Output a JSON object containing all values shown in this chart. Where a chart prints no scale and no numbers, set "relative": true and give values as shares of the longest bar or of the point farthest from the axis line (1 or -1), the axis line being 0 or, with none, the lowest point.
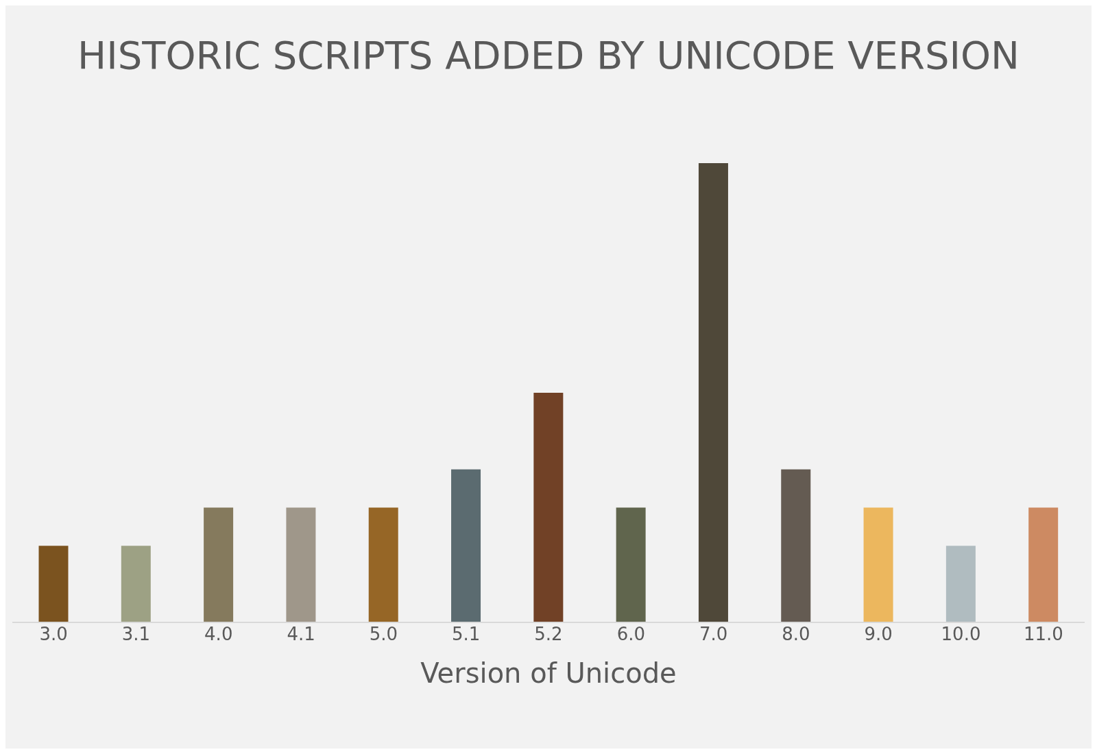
{
  "chart_data": {
    "type": "bar",
    "title": "HISTORIC SCRIPTS ADDED BY UNICODE VERSION",
    "xlabel": "Version of Unicode",
    "relative": true,
    "categories": [
      "3.0",
      "3.1",
      "4.0",
      "4.1",
      "5.0",
      "5.1",
      "5.2",
      "6.0",
      "7.0",
      "8.0",
      "9.0",
      "10.0",
      "11.0"
    ],
    "values": [
      0.1667,
      0.1667,
      0.25,
      0.25,
      0.25,
      0.3333,
      0.5,
      0.25,
      1,
      0.3333,
      0.25,
      0.1667,
      0.25
    ],
    "colors": [
      "#7b531f",
      "#9da184",
      "#857a5d",
      "#9f978a",
      "#966626",
      "#5b6b70",
      "#714126",
      "#60654d",
      "#4f4839",
      "#645b52",
      "#ecb75e",
      "#b0bcc0",
      "#cd8a62"
    ]
  }
}
